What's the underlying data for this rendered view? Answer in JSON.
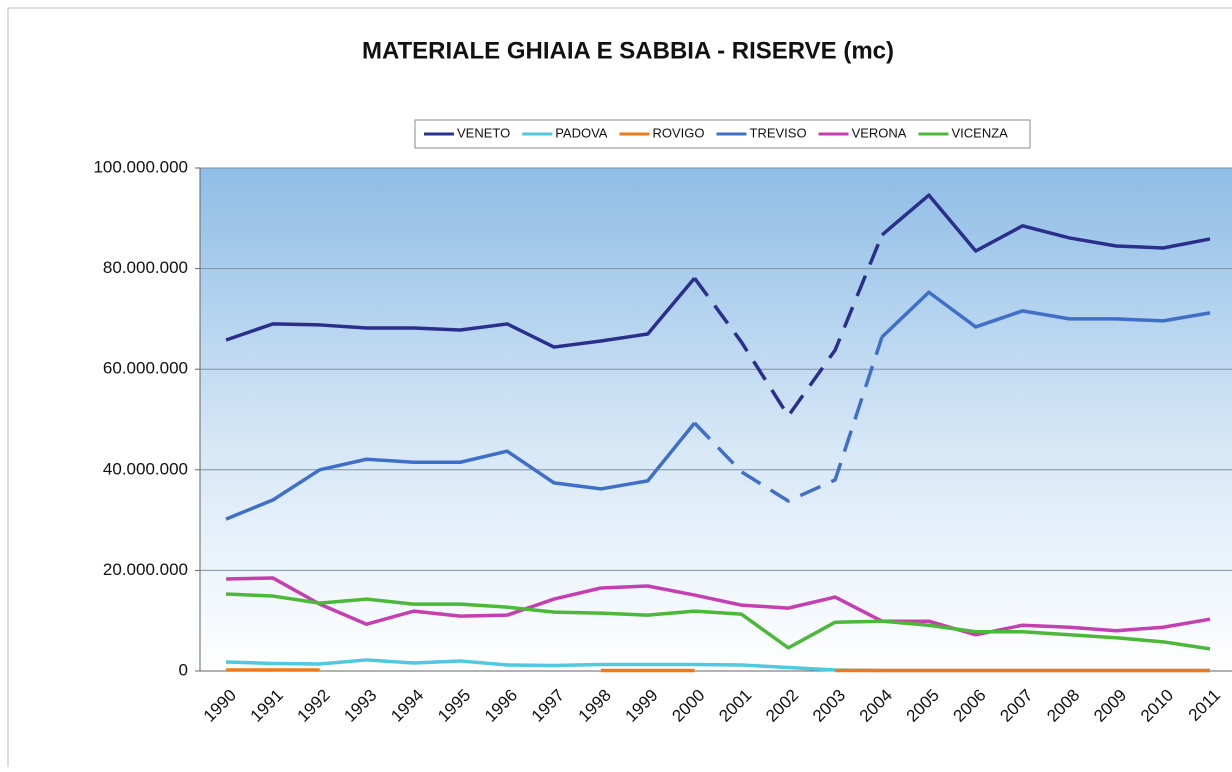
{
  "chart_data": {
    "type": "line",
    "title": "MATERIALE GHIAIA E SABBIA - RISERVE (mc)",
    "categories": [
      "1990",
      "1991",
      "1992",
      "1993",
      "1994",
      "1995",
      "1996",
      "1997",
      "1998",
      "1999",
      "2000",
      "2001",
      "2002",
      "2003",
      "2004",
      "2005",
      "2006",
      "2007",
      "2008",
      "2009",
      "2010",
      "2011"
    ],
    "series": [
      {
        "name": "VENETO",
        "color": "#2b2f8c",
        "dashed": [
          "2000",
          "2004"
        ],
        "values": [
          65800000,
          69000000,
          68800000,
          68200000,
          68200000,
          67800000,
          69000000,
          64400000,
          65600000,
          67000000,
          78100000,
          65400000,
          50700000,
          63800000,
          86700000,
          94600000,
          83500000,
          88500000,
          86100000,
          84500000,
          84100000,
          85900000
        ]
      },
      {
        "name": "PADOVA",
        "color": "#4fc8e0",
        "values": [
          1800000,
          1500000,
          1400000,
          2200000,
          1600000,
          2000000,
          1200000,
          1100000,
          1300000,
          1300000,
          1300000,
          1200000,
          700000,
          200000,
          100000,
          100000,
          100000,
          100000,
          100000,
          100000,
          100000,
          100000
        ]
      },
      {
        "name": "ROVIGO",
        "color": "#f07a1a",
        "values": [
          200000,
          200000,
          200000,
          null,
          null,
          null,
          null,
          null,
          100000,
          100000,
          100000,
          null,
          null,
          100000,
          100000,
          100000,
          100000,
          100000,
          100000,
          100000,
          100000,
          100000
        ]
      },
      {
        "name": "TREVISO",
        "color": "#3f6fc6",
        "dashed": [
          "2000",
          "2004"
        ],
        "values": [
          30200000,
          34000000,
          40000000,
          42100000,
          41500000,
          41500000,
          43700000,
          37400000,
          36200000,
          37800000,
          49300000,
          39600000,
          33800000,
          38000000,
          66400000,
          75300000,
          68400000,
          71600000,
          70000000,
          70000000,
          69600000,
          71200000
        ]
      },
      {
        "name": "VERONA",
        "color": "#c43fb0",
        "values": [
          18300000,
          18500000,
          13300000,
          9300000,
          11900000,
          10900000,
          11100000,
          14300000,
          16500000,
          16900000,
          15100000,
          13100000,
          12500000,
          14700000,
          9900000,
          9900000,
          7200000,
          9100000,
          8700000,
          8000000,
          8700000,
          10300000
        ]
      },
      {
        "name": "VICENZA",
        "color": "#4cb83a",
        "values": [
          15300000,
          14900000,
          13500000,
          14300000,
          13300000,
          13300000,
          12700000,
          11700000,
          11500000,
          11100000,
          11900000,
          11300000,
          4600000,
          9700000,
          9900000,
          9100000,
          7800000,
          7800000,
          7200000,
          6600000,
          5800000,
          4400000
        ]
      }
    ],
    "ylim": [
      0,
      100000000
    ],
    "yticks": [
      0,
      {
        "value": 20000000,
        "label": "20.000.000"
      },
      {
        "value": 40000000,
        "label": "40.000.000"
      },
      {
        "value": 60000000,
        "label": "60.000.000"
      },
      {
        "value": 80000000,
        "label": "80.000.000"
      },
      {
        "value": 100000000,
        "label": "100.000.000"
      }
    ],
    "grid": true,
    "legend": "top"
  }
}
